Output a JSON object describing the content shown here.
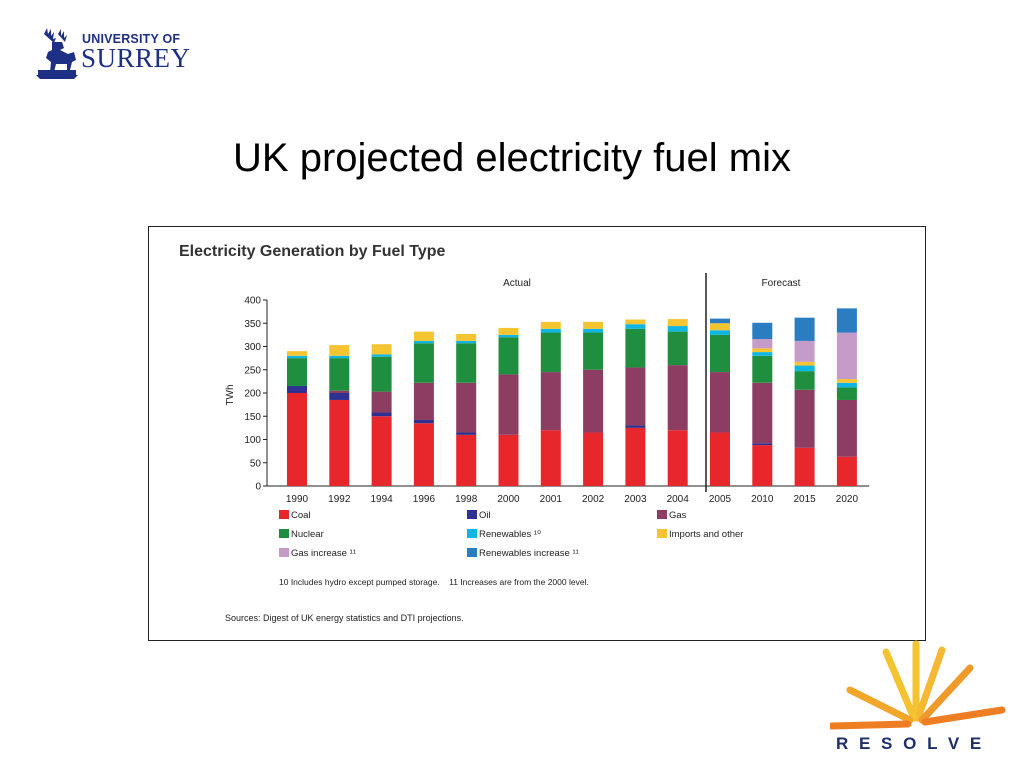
{
  "slide": {
    "title": "UK projected electricity fuel mix"
  },
  "logos": {
    "surrey_small": "UNIVERSITY OF",
    "surrey_big": "SURREY",
    "resolve": "R E S O L V E"
  },
  "chart_data": {
    "type": "bar",
    "stacked": true,
    "title": "Electricity Generation by Fuel Type",
    "ylabel": "TWh",
    "xlabel": "",
    "ylim": [
      0,
      400
    ],
    "yticks": [
      0,
      50,
      100,
      150,
      200,
      250,
      300,
      350,
      400
    ],
    "grid": false,
    "periods": [
      {
        "label": "Actual",
        "from": "1990",
        "to": "2004"
      },
      {
        "label": "Forecast",
        "from": "2005",
        "to": "2020"
      }
    ],
    "categories": [
      "1990",
      "1992",
      "1994",
      "1996",
      "1998",
      "2000",
      "2001",
      "2002",
      "2003",
      "2004",
      "2005",
      "2010",
      "2015",
      "2020"
    ],
    "series": [
      {
        "name": "Coal",
        "color": "#e8272c",
        "values": [
          200,
          185,
          150,
          135,
          110,
          110,
          120,
          115,
          125,
          120,
          115,
          88,
          82,
          63
        ]
      },
      {
        "name": "Oil",
        "color": "#2e3192",
        "values": [
          15,
          15,
          8,
          7,
          5,
          0,
          0,
          0,
          5,
          0,
          0,
          4,
          0,
          0
        ]
      },
      {
        "name": "Gas",
        "color": "#8e3d62",
        "values": [
          0,
          5,
          45,
          80,
          107,
          130,
          125,
          135,
          125,
          140,
          130,
          130,
          125,
          122
        ]
      },
      {
        "name": "Nuclear",
        "color": "#1f8f3f",
        "values": [
          60,
          70,
          75,
          85,
          85,
          80,
          85,
          80,
          83,
          72,
          80,
          58,
          40,
          27
        ]
      },
      {
        "name": "Renewables ¹⁰",
        "color": "#10b6e3",
        "values": [
          5,
          5,
          5,
          5,
          5,
          5,
          8,
          8,
          10,
          12,
          10,
          8,
          12,
          10
        ]
      },
      {
        "name": "Imports and other",
        "color": "#f5c431",
        "values": [
          10,
          23,
          22,
          20,
          15,
          15,
          15,
          15,
          10,
          15,
          15,
          8,
          8,
          8
        ]
      },
      {
        "name": "Gas increase ¹¹",
        "color": "#c49bc9",
        "values": [
          0,
          0,
          0,
          0,
          0,
          0,
          0,
          0,
          0,
          0,
          0,
          20,
          45,
          100
        ]
      },
      {
        "name": "Renewables increase ¹¹",
        "color": "#2b7dc2",
        "values": [
          0,
          0,
          0,
          0,
          0,
          0,
          0,
          0,
          0,
          0,
          10,
          35,
          50,
          52
        ]
      }
    ],
    "legend_placement": "bottom",
    "footnote": "10 Includes hydro except pumped storage.    11 Increases are from the 2000 level.",
    "source": "Sources: Digest of UK energy statistics and DTI projections."
  }
}
